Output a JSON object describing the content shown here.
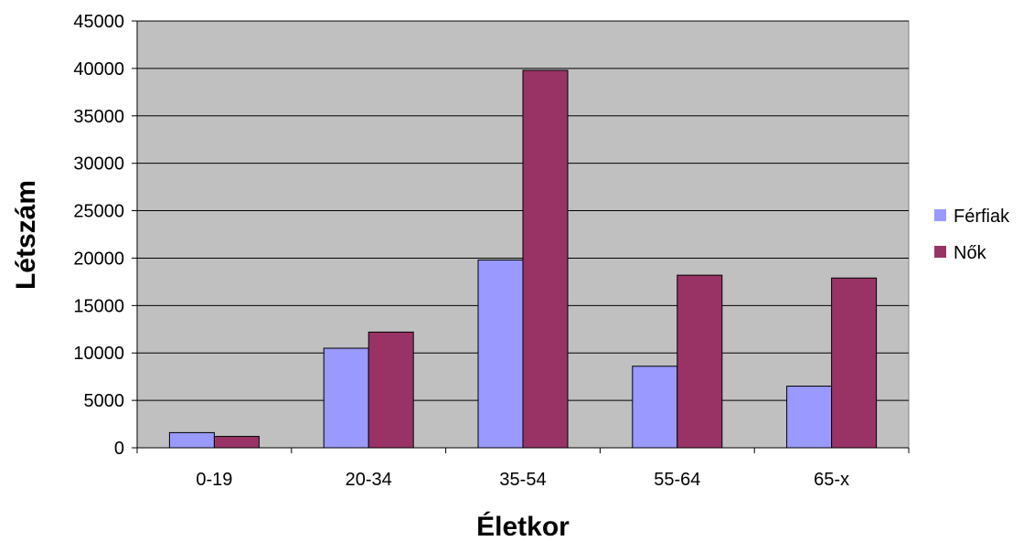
{
  "chart_data": {
    "type": "bar",
    "categories": [
      "0-19",
      "20-34",
      "35-54",
      "55-64",
      "65-x"
    ],
    "series": [
      {
        "name": "Férfiak",
        "values": [
          1600,
          10500,
          19800,
          8600,
          6500
        ],
        "color": "#9999ff"
      },
      {
        "name": "Nők",
        "values": [
          1200,
          12200,
          39800,
          18200,
          17900
        ],
        "color": "#993366"
      }
    ],
    "title": "",
    "xlabel": "Életkor",
    "ylabel": "Létszám",
    "ylim": [
      0,
      45000
    ],
    "yticks": [
      "0",
      "5000",
      "10000",
      "15000",
      "20000",
      "25000",
      "30000",
      "35000",
      "40000",
      "45000"
    ],
    "grid": true,
    "legend_position": "right",
    "plot_background": "#c0c0c0"
  }
}
